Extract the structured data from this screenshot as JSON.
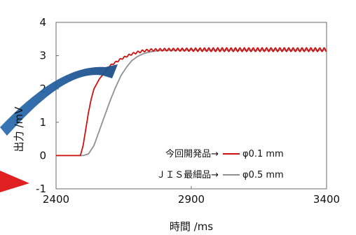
{
  "chart_data": {
    "type": "line",
    "xlabel": "時間 /ms",
    "ylabel": "出力 /mV",
    "xlim": [
      2400,
      3400
    ],
    "ylim": [
      -1,
      4
    ],
    "xticks": [
      "2400",
      "2900",
      "3400"
    ],
    "yticks": [
      "-1",
      "0",
      "1",
      "2",
      "3",
      "4"
    ],
    "grid": false,
    "legend_position": "bottom-right",
    "series": [
      {
        "name": "φ0.1 mm",
        "legend_prefix": "今回開発品→",
        "color": "#cc1111",
        "x": [
          2400,
          2450,
          2490,
          2500,
          2510,
          2520,
          2530,
          2540,
          2550,
          2560,
          2570,
          2580,
          2590,
          2600,
          2620,
          2640,
          2660,
          2680,
          2700,
          2720,
          2750,
          2800,
          2850,
          2900,
          3000,
          3100,
          3200,
          3300,
          3400
        ],
        "y": [
          0.0,
          0.0,
          0.0,
          0.3,
          0.8,
          1.3,
          1.7,
          2.0,
          2.15,
          2.3,
          2.4,
          2.5,
          2.6,
          2.7,
          2.8,
          2.9,
          2.98,
          3.05,
          3.1,
          3.14,
          3.17,
          3.18,
          3.18,
          3.18,
          3.18,
          3.18,
          3.18,
          3.18,
          3.18
        ],
        "ripple": true
      },
      {
        "name": "φ0.5 mm",
        "legend_prefix": "ＪＩＳ最細品→",
        "color": "#909090",
        "x": [
          2400,
          2450,
          2500,
          2520,
          2540,
          2560,
          2580,
          2600,
          2620,
          2640,
          2660,
          2680,
          2700,
          2720,
          2740,
          2760,
          2780,
          2800,
          2850,
          2900,
          3000,
          3100,
          3200,
          3300,
          3400
        ],
        "y": [
          0.0,
          0.0,
          0.0,
          0.05,
          0.3,
          0.75,
          1.2,
          1.65,
          2.05,
          2.4,
          2.65,
          2.85,
          2.97,
          3.05,
          3.1,
          3.13,
          3.15,
          3.16,
          3.17,
          3.17,
          3.17,
          3.17,
          3.17,
          3.17,
          3.17
        ],
        "ripple": false
      }
    ]
  }
}
